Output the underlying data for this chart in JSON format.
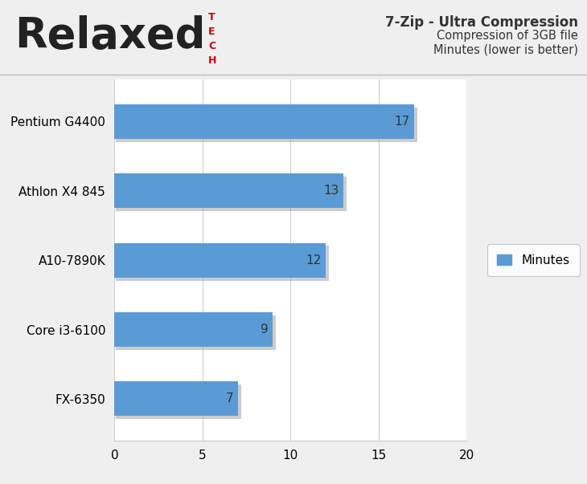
{
  "categories": [
    "FX-6350",
    "Core i3-6100",
    "A10-7890K",
    "Athlon X4 845",
    "Pentium G4400"
  ],
  "values": [
    7,
    9,
    12,
    13,
    17
  ],
  "bar_color": "#5B9BD5",
  "bar_shadow_color": "#AAAAAA",
  "title_line1": "7-Zip - Ultra Compression",
  "title_line2": "Compression of 3GB file",
  "title_line3": "Minutes (lower is better)",
  "legend_label": "Minutes",
  "xlim": [
    0,
    20
  ],
  "xticks": [
    0,
    5,
    10,
    15,
    20
  ],
  "bar_height": 0.5,
  "background_color": "#EFEFEF",
  "plot_bg_color": "#FFFFFF",
  "grid_color": "#CCCCCC",
  "label_color": "#333333",
  "value_label_color": "#333333",
  "logo_color_relaxed": "#222222",
  "logo_color_tech": "#CC0000",
  "title_fontsize": 12,
  "axis_label_fontsize": 11,
  "value_fontsize": 11,
  "category_fontsize": 11
}
